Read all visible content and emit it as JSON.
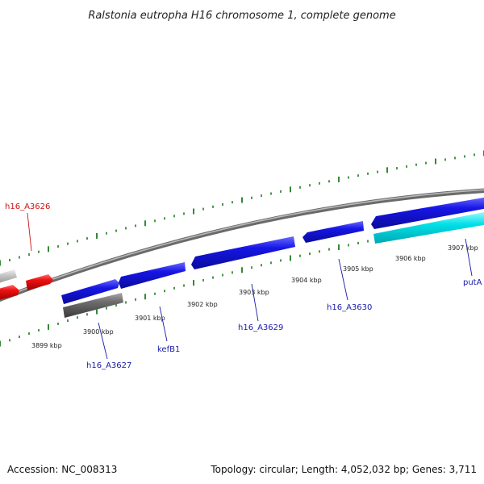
{
  "title": "Ralstonia eutropha H16 chromosome 1, complete genome",
  "footer": {
    "accession": "Accession: NC_008313",
    "summary": "Topology: circular; Length: 4,052,032 bp; Genes: 3,711"
  },
  "colors": {
    "backbone": "#8c8c8c",
    "tick": "#1f7a1f",
    "forward_gene": "#1616e6",
    "reverse_gene": "#ee1111",
    "pseudo_gene": "#6e6e6e",
    "light_gene": "#c8c8c8",
    "rna_gene": "#00e0e8",
    "label_blue": "#1a1aa8",
    "label_red": "#cc1111"
  },
  "scale_labels": [
    "3899 kbp",
    "3900 kbp",
    "3901 kbp",
    "3902 kbp",
    "3903 kbp",
    "3904 kbp",
    "3905 kbp",
    "3906 kbp",
    "3907 kbp"
  ],
  "gene_labels": [
    {
      "text": "h16_A3626",
      "color": "label_red"
    },
    {
      "text": "h16_A3627",
      "color": "label_blue"
    },
    {
      "text": "kefB1",
      "color": "label_blue"
    },
    {
      "text": "h16_A3629",
      "color": "label_blue"
    },
    {
      "text": "h16_A3630",
      "color": "label_blue"
    },
    {
      "text": "putA",
      "color": "label_blue"
    }
  ]
}
